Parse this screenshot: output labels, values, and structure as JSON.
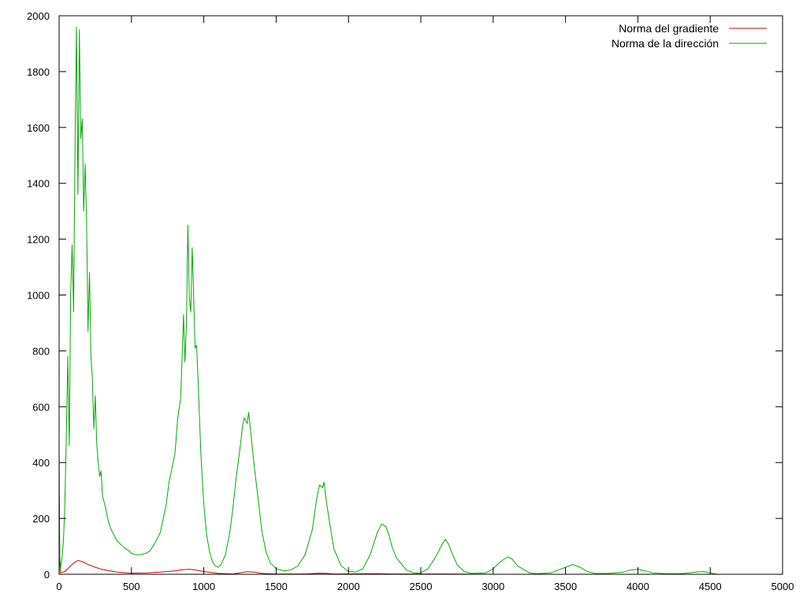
{
  "chart_data": {
    "type": "line",
    "title": "",
    "xlabel": "",
    "ylabel": "",
    "xlim": [
      0,
      5000
    ],
    "ylim": [
      0,
      2000
    ],
    "xticks": [
      0,
      500,
      1000,
      1500,
      2000,
      2500,
      3000,
      3500,
      4000,
      4500,
      5000
    ],
    "yticks": [
      0,
      200,
      400,
      600,
      800,
      1000,
      1200,
      1400,
      1600,
      1800,
      2000
    ],
    "grid": false,
    "legend_position": "top-right",
    "series": [
      {
        "name": "Norma del gradiente",
        "color": "#cc0000",
        "points": [
          [
            0,
            70
          ],
          [
            10,
            5
          ],
          [
            40,
            10
          ],
          [
            60,
            20
          ],
          [
            80,
            30
          ],
          [
            100,
            40
          ],
          [
            130,
            50
          ],
          [
            160,
            45
          ],
          [
            200,
            35
          ],
          [
            250,
            25
          ],
          [
            300,
            17
          ],
          [
            400,
            8
          ],
          [
            500,
            4
          ],
          [
            600,
            5
          ],
          [
            700,
            8
          ],
          [
            800,
            12
          ],
          [
            850,
            16
          ],
          [
            900,
            18
          ],
          [
            950,
            15
          ],
          [
            1000,
            10
          ],
          [
            1100,
            3
          ],
          [
            1200,
            1
          ],
          [
            1300,
            9
          ],
          [
            1350,
            8
          ],
          [
            1400,
            3
          ],
          [
            1500,
            1
          ],
          [
            1700,
            1
          ],
          [
            1800,
            4
          ],
          [
            1850,
            3
          ],
          [
            1900,
            1
          ],
          [
            2200,
            2
          ],
          [
            2300,
            1
          ],
          [
            2700,
            1
          ],
          [
            3000,
            0
          ],
          [
            4500,
            0
          ]
        ]
      },
      {
        "name": "Norma de la dirección",
        "color": "#00aa00",
        "points": [
          [
            0,
            430
          ],
          [
            5,
            60
          ],
          [
            10,
            20
          ],
          [
            20,
            60
          ],
          [
            30,
            120
          ],
          [
            40,
            250
          ],
          [
            50,
            500
          ],
          [
            60,
            780
          ],
          [
            70,
            460
          ],
          [
            80,
            1000
          ],
          [
            90,
            1180
          ],
          [
            100,
            940
          ],
          [
            110,
            1540
          ],
          [
            120,
            1960
          ],
          [
            130,
            1360
          ],
          [
            140,
            1950
          ],
          [
            150,
            1560
          ],
          [
            160,
            1630
          ],
          [
            170,
            1300
          ],
          [
            180,
            1470
          ],
          [
            190,
            1260
          ],
          [
            200,
            870
          ],
          [
            210,
            1080
          ],
          [
            220,
            780
          ],
          [
            230,
            700
          ],
          [
            240,
            520
          ],
          [
            250,
            640
          ],
          [
            260,
            470
          ],
          [
            270,
            400
          ],
          [
            280,
            350
          ],
          [
            290,
            370
          ],
          [
            300,
            280
          ],
          [
            320,
            240
          ],
          [
            340,
            190
          ],
          [
            360,
            160
          ],
          [
            380,
            140
          ],
          [
            400,
            120
          ],
          [
            420,
            110
          ],
          [
            450,
            95
          ],
          [
            480,
            85
          ],
          [
            500,
            75
          ],
          [
            530,
            70
          ],
          [
            560,
            70
          ],
          [
            600,
            75
          ],
          [
            630,
            85
          ],
          [
            660,
            110
          ],
          [
            700,
            150
          ],
          [
            720,
            200
          ],
          [
            740,
            250
          ],
          [
            760,
            330
          ],
          [
            780,
            380
          ],
          [
            800,
            430
          ],
          [
            820,
            560
          ],
          [
            840,
            630
          ],
          [
            850,
            780
          ],
          [
            860,
            930
          ],
          [
            870,
            760
          ],
          [
            880,
            900
          ],
          [
            890,
            1250
          ],
          [
            900,
            990
          ],
          [
            910,
            940
          ],
          [
            920,
            1170
          ],
          [
            930,
            1000
          ],
          [
            940,
            810
          ],
          [
            950,
            820
          ],
          [
            960,
            700
          ],
          [
            980,
            430
          ],
          [
            1000,
            250
          ],
          [
            1020,
            140
          ],
          [
            1040,
            80
          ],
          [
            1060,
            45
          ],
          [
            1080,
            30
          ],
          [
            1100,
            25
          ],
          [
            1120,
            35
          ],
          [
            1150,
            70
          ],
          [
            1180,
            150
          ],
          [
            1200,
            230
          ],
          [
            1220,
            330
          ],
          [
            1250,
            450
          ],
          [
            1270,
            540
          ],
          [
            1280,
            560
          ],
          [
            1300,
            540
          ],
          [
            1310,
            580
          ],
          [
            1330,
            480
          ],
          [
            1350,
            380
          ],
          [
            1380,
            250
          ],
          [
            1400,
            160
          ],
          [
            1430,
            80
          ],
          [
            1460,
            40
          ],
          [
            1500,
            20
          ],
          [
            1550,
            12
          ],
          [
            1600,
            15
          ],
          [
            1650,
            30
          ],
          [
            1700,
            70
          ],
          [
            1750,
            160
          ],
          [
            1780,
            270
          ],
          [
            1800,
            320
          ],
          [
            1820,
            310
          ],
          [
            1830,
            330
          ],
          [
            1850,
            250
          ],
          [
            1880,
            150
          ],
          [
            1900,
            90
          ],
          [
            1950,
            30
          ],
          [
            2000,
            10
          ],
          [
            2050,
            8
          ],
          [
            2100,
            20
          ],
          [
            2150,
            70
          ],
          [
            2200,
            150
          ],
          [
            2230,
            180
          ],
          [
            2260,
            170
          ],
          [
            2280,
            140
          ],
          [
            2300,
            100
          ],
          [
            2330,
            60
          ],
          [
            2400,
            15
          ],
          [
            2450,
            5
          ],
          [
            2500,
            5
          ],
          [
            2550,
            20
          ],
          [
            2600,
            60
          ],
          [
            2650,
            110
          ],
          [
            2670,
            125
          ],
          [
            2690,
            110
          ],
          [
            2720,
            70
          ],
          [
            2750,
            35
          ],
          [
            2800,
            10
          ],
          [
            2850,
            3
          ],
          [
            2950,
            5
          ],
          [
            3000,
            20
          ],
          [
            3050,
            45
          ],
          [
            3100,
            62
          ],
          [
            3130,
            55
          ],
          [
            3170,
            30
          ],
          [
            3250,
            5
          ],
          [
            3300,
            2
          ],
          [
            3400,
            5
          ],
          [
            3450,
            15
          ],
          [
            3500,
            25
          ],
          [
            3550,
            35
          ],
          [
            3600,
            25
          ],
          [
            3650,
            10
          ],
          [
            3700,
            3
          ],
          [
            3800,
            3
          ],
          [
            3900,
            8
          ],
          [
            3950,
            15
          ],
          [
            4000,
            18
          ],
          [
            4050,
            12
          ],
          [
            4100,
            5
          ],
          [
            4200,
            2
          ],
          [
            4300,
            2
          ],
          [
            4400,
            8
          ],
          [
            4450,
            10
          ],
          [
            4500,
            5
          ],
          [
            4550,
            0
          ],
          [
            4600,
            0
          ]
        ]
      }
    ]
  }
}
